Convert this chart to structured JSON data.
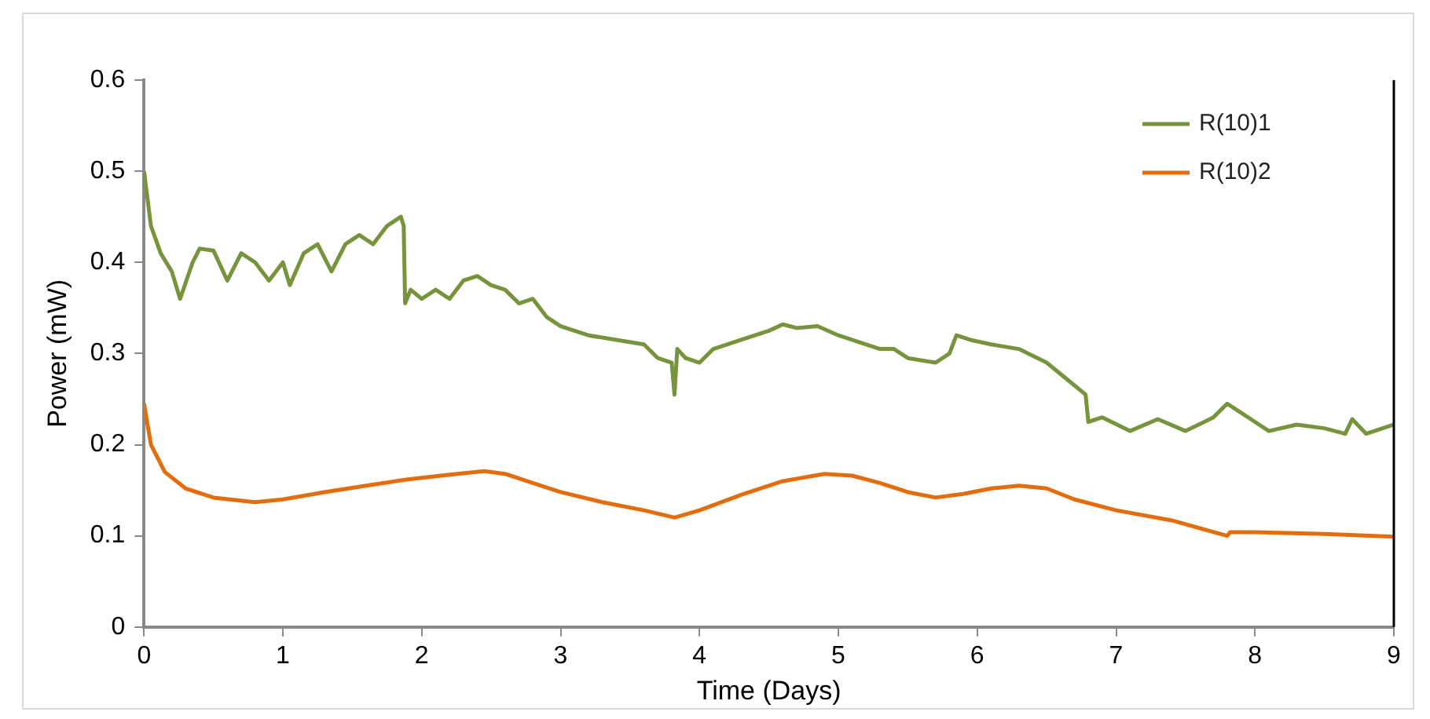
{
  "chart_data": {
    "type": "line",
    "xlabel": "Time (Days)",
    "ylabel": "Power (mW)",
    "xlim": [
      0,
      9
    ],
    "ylim": [
      0,
      0.6
    ],
    "xticks": [
      0,
      1,
      2,
      3,
      4,
      5,
      6,
      7,
      8,
      9
    ],
    "yticks": [
      0,
      0.1,
      0.2,
      0.3,
      0.4,
      0.5,
      0.6
    ],
    "grid": false,
    "legend": "top right",
    "marker": "none",
    "line_style": "solid",
    "series": [
      {
        "name": "R(10)1",
        "color": "#77933c",
        "x": [
          0,
          0.05,
          0.12,
          0.2,
          0.26,
          0.35,
          0.4,
          0.5,
          0.6,
          0.7,
          0.8,
          0.9,
          1.0,
          1.05,
          1.15,
          1.25,
          1.35,
          1.45,
          1.55,
          1.65,
          1.75,
          1.85,
          1.87,
          1.88,
          1.92,
          2.0,
          2.1,
          2.2,
          2.3,
          2.4,
          2.5,
          2.6,
          2.7,
          2.8,
          2.9,
          3.0,
          3.2,
          3.4,
          3.6,
          3.7,
          3.8,
          3.82,
          3.84,
          3.9,
          4.0,
          4.1,
          4.3,
          4.5,
          4.6,
          4.7,
          4.85,
          5.0,
          5.2,
          5.3,
          5.4,
          5.5,
          5.7,
          5.8,
          5.85,
          5.95,
          6.1,
          6.3,
          6.5,
          6.7,
          6.78,
          6.8,
          6.9,
          7.1,
          7.3,
          7.5,
          7.7,
          7.8,
          7.9,
          8.0,
          8.1,
          8.3,
          8.5,
          8.65,
          8.7,
          8.8,
          9.0
        ],
        "values": [
          0.5,
          0.44,
          0.41,
          0.39,
          0.36,
          0.4,
          0.415,
          0.413,
          0.38,
          0.41,
          0.4,
          0.38,
          0.4,
          0.375,
          0.41,
          0.42,
          0.39,
          0.42,
          0.43,
          0.42,
          0.44,
          0.45,
          0.44,
          0.355,
          0.37,
          0.36,
          0.37,
          0.36,
          0.38,
          0.385,
          0.375,
          0.37,
          0.355,
          0.36,
          0.34,
          0.33,
          0.32,
          0.315,
          0.31,
          0.295,
          0.29,
          0.255,
          0.305,
          0.295,
          0.29,
          0.305,
          0.315,
          0.325,
          0.332,
          0.328,
          0.33,
          0.32,
          0.31,
          0.305,
          0.305,
          0.295,
          0.29,
          0.3,
          0.32,
          0.315,
          0.31,
          0.305,
          0.29,
          0.265,
          0.255,
          0.225,
          0.23,
          0.215,
          0.228,
          0.215,
          0.23,
          0.245,
          0.235,
          0.225,
          0.215,
          0.222,
          0.218,
          0.212,
          0.228,
          0.212,
          0.222
        ]
      },
      {
        "name": "R(10)2",
        "color": "#e46c0a",
        "x": [
          0,
          0.05,
          0.15,
          0.3,
          0.5,
          0.8,
          1.0,
          1.3,
          1.6,
          1.9,
          2.2,
          2.45,
          2.6,
          2.8,
          3.0,
          3.3,
          3.6,
          3.82,
          4.0,
          4.3,
          4.6,
          4.9,
          5.1,
          5.3,
          5.5,
          5.7,
          5.9,
          6.1,
          6.3,
          6.5,
          6.7,
          7.0,
          7.4,
          7.8,
          7.82,
          8.0,
          8.5,
          9.0
        ],
        "values": [
          0.245,
          0.2,
          0.17,
          0.152,
          0.142,
          0.137,
          0.14,
          0.148,
          0.155,
          0.162,
          0.167,
          0.171,
          0.168,
          0.158,
          0.148,
          0.137,
          0.128,
          0.12,
          0.128,
          0.145,
          0.16,
          0.168,
          0.166,
          0.158,
          0.148,
          0.142,
          0.146,
          0.152,
          0.155,
          0.152,
          0.14,
          0.128,
          0.117,
          0.1,
          0.104,
          0.104,
          0.102,
          0.099
        ]
      }
    ]
  }
}
